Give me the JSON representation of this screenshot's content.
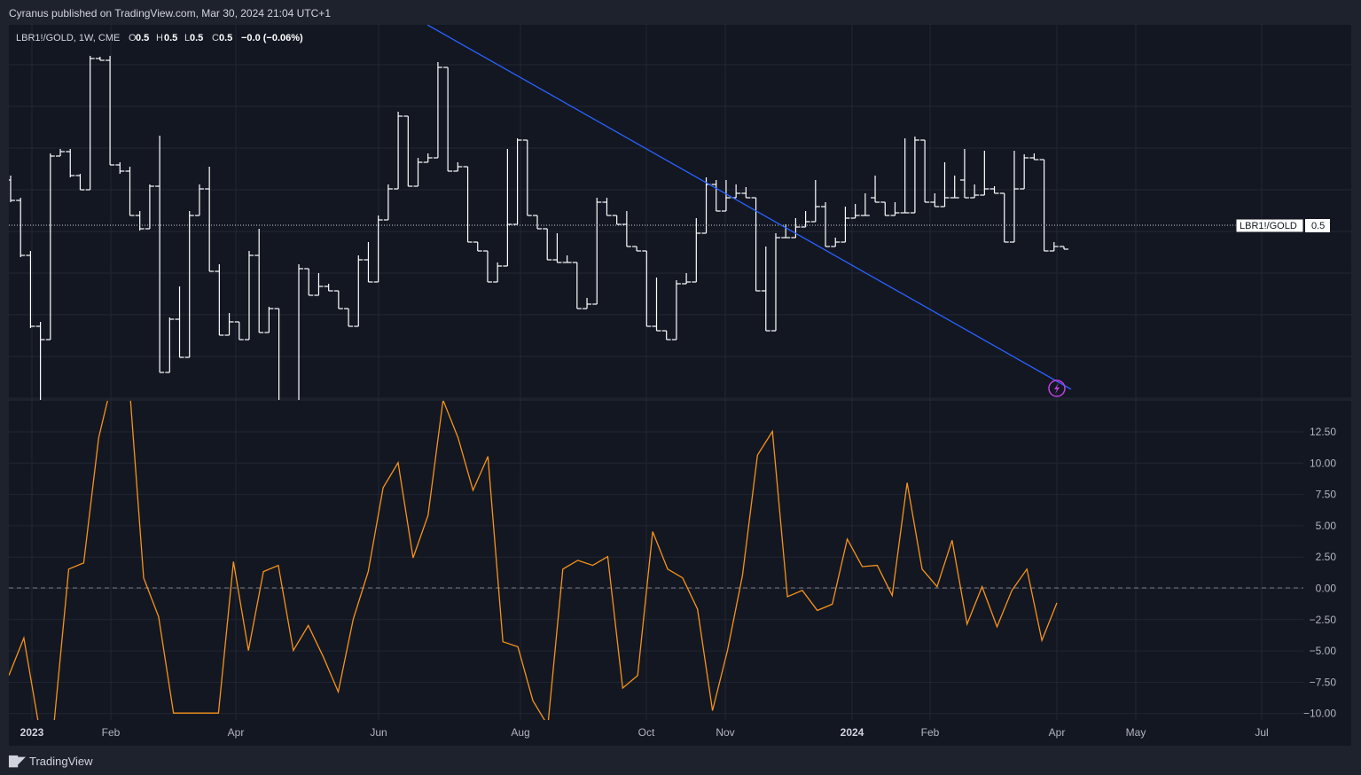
{
  "header": {
    "publisher": "Cyranus published on TradingView.com, Mar 30, 2024 21:04 UTC+1"
  },
  "legend": {
    "symbol": "LBR1!/GOLD, 1W, CME",
    "open_label": "O",
    "open_value": "0.5",
    "high_label": "H",
    "high_value": "0.5",
    "low_label": "L",
    "low_value": "0.5",
    "close_label": "C",
    "close_value": "0.5",
    "change": "−0.0 (−0.06%)"
  },
  "price_tag": {
    "label": "LBR1!/GOLD",
    "value": "0.5"
  },
  "footer": {
    "brand": "TradingView"
  },
  "colors": {
    "background": "#131722",
    "frame": "#1e222d",
    "grid": "#232733",
    "bars": "#ffffff",
    "trendline": "#2962ff",
    "oscillator": "#f7931a",
    "alert": "#c040e0"
  },
  "icons": {
    "alert": "lightning-bolt-icon",
    "brand": "tradingview-logo-icon"
  },
  "chart_data": [
    {
      "type": "ohlc",
      "interval": "1W",
      "x_tick_labels": [
        "2023",
        "Feb",
        "Apr",
        "Jun",
        "Aug",
        "Oct",
        "Nov",
        "2024",
        "Feb",
        "Apr",
        "May",
        "Jul"
      ],
      "x_tick_bold": [
        "2023",
        "2024"
      ],
      "bars": [
        [
          175,
          200,
          170,
          198
        ],
        [
          198,
          262,
          195,
          260
        ],
        [
          260,
          342,
          255,
          340
        ],
        [
          340,
          445,
          335,
          355
        ],
        [
          355,
          150,
          145,
          148
        ],
        [
          148,
          145,
          140,
          143
        ],
        [
          143,
          172,
          140,
          170
        ],
        [
          170,
          185,
          168,
          186
        ],
        [
          186,
          40,
          35,
          38
        ],
        [
          38,
          38,
          36,
          40
        ],
        [
          40,
          158,
          35,
          158
        ],
        [
          158,
          168,
          155,
          165
        ],
        [
          165,
          215,
          160,
          215
        ],
        [
          215,
          232,
          210,
          230
        ],
        [
          230,
          183,
          180,
          182
        ],
        [
          182,
          128,
          125,
          392
        ],
        [
          392,
          332,
          330,
          332
        ],
        [
          332,
          300,
          295,
          375
        ],
        [
          375,
          215,
          210,
          215
        ],
        [
          215,
          185,
          180,
          185
        ],
        [
          185,
          278,
          160,
          278
        ],
        [
          278,
          350,
          270,
          350
        ],
        [
          350,
          330,
          325,
          335
        ],
        [
          335,
          350,
          345,
          355
        ],
        [
          355,
          262,
          255,
          260
        ],
        [
          260,
          235,
          230,
          347
        ],
        [
          347,
          320,
          318,
          320
        ],
        [
          320,
          432,
          428,
          432
        ],
        [
          432,
          440,
          435,
          445
        ],
        [
          445,
          275,
          270,
          275
        ],
        [
          275,
          305,
          300,
          305
        ],
        [
          305,
          285,
          280,
          295
        ],
        [
          295,
          298,
          292,
          300
        ],
        [
          300,
          320,
          315,
          320
        ],
        [
          320,
          335,
          330,
          340
        ],
        [
          340,
          265,
          260,
          265
        ],
        [
          265,
          250,
          245,
          290
        ],
        [
          290,
          218,
          215,
          220
        ],
        [
          220,
          185,
          180,
          185
        ],
        [
          185,
          103,
          98,
          103
        ],
        [
          103,
          182,
          178,
          182
        ],
        [
          182,
          155,
          150,
          155
        ],
        [
          155,
          150,
          145,
          150
        ],
        [
          150,
          45,
          42,
          48
        ],
        [
          48,
          165,
          55,
          165
        ],
        [
          165,
          158,
          155,
          160
        ],
        [
          160,
          242,
          238,
          245
        ],
        [
          245,
          250,
          245,
          255
        ],
        [
          255,
          290,
          285,
          290
        ],
        [
          290,
          272,
          268,
          272
        ],
        [
          272,
          145,
          140,
          225
        ],
        [
          225,
          130,
          128,
          130
        ],
        [
          130,
          212,
          210,
          215
        ],
        [
          215,
          225,
          220,
          230
        ],
        [
          230,
          238,
          235,
          265
        ],
        [
          265,
          240,
          235,
          268
        ],
        [
          268,
          265,
          260,
          268
        ],
        [
          268,
          290,
          285,
          320
        ],
        [
          320,
          312,
          308,
          315
        ],
        [
          315,
          200,
          195,
          200
        ],
        [
          200,
          210,
          195,
          215
        ],
        [
          215,
          222,
          218,
          225
        ],
        [
          225,
          215,
          210,
          250
        ],
        [
          250,
          255,
          250,
          255
        ],
        [
          255,
          340,
          335,
          340
        ],
        [
          340,
          290,
          285,
          345
        ],
        [
          345,
          352,
          348,
          355
        ],
        [
          355,
          292,
          288,
          292
        ],
        [
          292,
          285,
          280,
          290
        ],
        [
          290,
          233,
          218,
          235
        ],
        [
          235,
          178,
          172,
          180
        ],
        [
          180,
          180,
          175,
          210
        ],
        [
          210,
          185,
          175,
          195
        ],
        [
          195,
          186,
          180,
          190
        ],
        [
          190,
          184,
          183,
          195
        ],
        [
          195,
          298,
          290,
          300
        ],
        [
          300,
          255,
          250,
          345
        ],
        [
          345,
          238,
          235,
          240
        ],
        [
          240,
          230,
          225,
          240
        ],
        [
          240,
          222,
          218,
          228
        ],
        [
          228,
          218,
          210,
          222
        ],
        [
          222,
          178,
          175,
          205
        ],
        [
          205,
          203,
          200,
          250
        ],
        [
          250,
          245,
          240,
          245
        ],
        [
          245,
          212,
          205,
          218
        ],
        [
          218,
          205,
          202,
          215
        ],
        [
          215,
          195,
          190,
          215
        ],
        [
          195,
          175,
          170,
          200
        ],
        [
          200,
          210,
          205,
          215
        ],
        [
          215,
          206,
          200,
          212
        ],
        [
          212,
          130,
          128,
          212
        ],
        [
          212,
          128,
          126,
          130
        ],
        [
          130,
          192,
          188,
          200
        ],
        [
          200,
          195,
          190,
          205
        ],
        [
          205,
          160,
          155,
          195
        ],
        [
          195,
          175,
          170,
          195
        ],
        [
          175,
          158,
          140,
          195
        ],
        [
          195,
          185,
          180,
          192
        ],
        [
          192,
          145,
          142,
          185
        ],
        [
          185,
          188,
          182,
          190
        ],
        [
          190,
          242,
          238,
          245
        ],
        [
          245,
          150,
          142,
          185
        ],
        [
          185,
          148,
          146,
          150
        ],
        [
          150,
          152,
          145,
          152
        ],
        [
          152,
          255,
          250,
          255
        ],
        [
          255,
          248,
          245,
          250
        ],
        [
          250,
          252,
          250,
          253
        ]
      ],
      "bar_note": "OHLC in relative chart units (lower = higher price, measured top-down)",
      "current_value": 0.5,
      "trendline": {
        "from": [
          28,
          0.0
        ],
        "to": [
          100,
          1.0
        ],
        "direction": "down"
      }
    },
    {
      "type": "line",
      "y_tick_labels": [
        "12.50",
        "10.00",
        "7.50",
        "5.00",
        "2.50",
        "0.00",
        "−2.50",
        "−5.00",
        "−7.50",
        "−10.00"
      ],
      "ylim": [
        -10.5,
        15.5
      ],
      "zero_line": true,
      "values": [
        -7,
        -4,
        -11,
        -11,
        1.5,
        2,
        12,
        17,
        17,
        0.8,
        -2.3,
        -10,
        -10,
        -10,
        -10,
        2.1,
        -5,
        1.3,
        1.8,
        -5,
        -3,
        -5.5,
        -8.3,
        -2.5,
        1.3,
        8,
        10,
        2.4,
        5.8,
        15,
        12,
        7.8,
        10.5,
        -4.3,
        -4.7,
        -9,
        -11,
        1.5,
        2.2,
        1.8,
        2.5,
        -8,
        -7,
        4.5,
        1.5,
        0.8,
        -1.7,
        -9.8,
        -5,
        1,
        10.6,
        12.5,
        -0.7,
        -0.2,
        -1.8,
        -1.3,
        3.9,
        1.7,
        1.8,
        -0.6,
        8.4,
        1.5,
        0.1,
        3.8,
        -2.9,
        0.1,
        -3.1,
        -0.2,
        1.5,
        -4.2,
        -1.2
      ]
    }
  ]
}
